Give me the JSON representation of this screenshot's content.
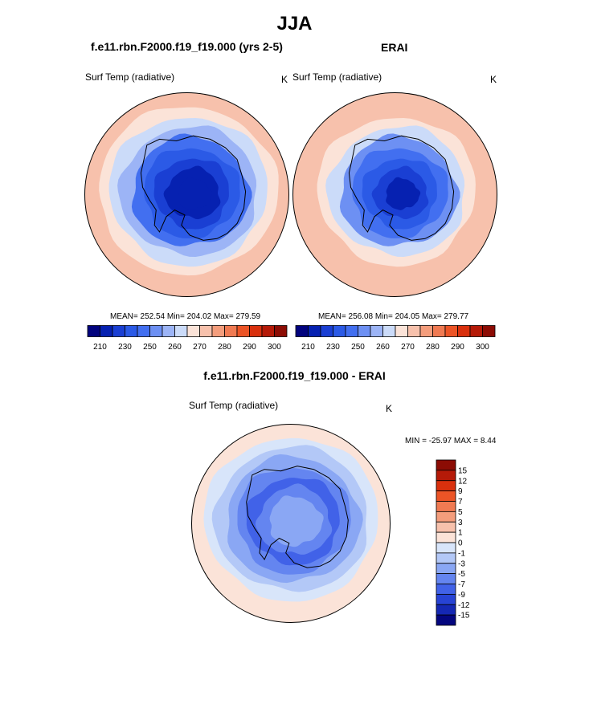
{
  "page_title": "JJA",
  "chart_data": [
    {
      "type": "heatmap",
      "title": "f.e11.rbn.F2000.f19_f19.000 (yrs 2-5)",
      "field_label": "Surf Temp (radiative)",
      "units": "K",
      "stats_text": "MEAN= 252.54  Min= 204.02  Max= 279.59",
      "mean": 252.54,
      "min": 204.02,
      "max": 279.59,
      "ring_values": [
        272,
        268,
        262,
        256,
        248,
        238,
        228,
        218,
        210
      ],
      "colorbar": {
        "tick_labels": [
          "210",
          "230",
          "250",
          "260",
          "270",
          "280",
          "290",
          "300"
        ],
        "colors": [
          "#02037e",
          "#0621b1",
          "#1a3fd3",
          "#2b5ae6",
          "#426ff0",
          "#6d90f3",
          "#9cb4f6",
          "#cbdbf9",
          "#fbe3d8",
          "#f7c1ac",
          "#f49d7c",
          "#f07a52",
          "#ec5426",
          "#d9300d",
          "#b51a08",
          "#8c0c04"
        ]
      }
    },
    {
      "type": "heatmap",
      "title": "ERAI",
      "field_label": "Surf Temp (radiative)",
      "units": "K",
      "stats_text": "MEAN= 256.08  Min= 204.05  Max= 279.77",
      "mean": 256.08,
      "min": 204.05,
      "max": 279.77,
      "ring_values": [
        273,
        270,
        266,
        260,
        252,
        242,
        232,
        222,
        212
      ],
      "colorbar": {
        "tick_labels": [
          "210",
          "230",
          "250",
          "260",
          "270",
          "280",
          "290",
          "300"
        ],
        "colors": [
          "#02037e",
          "#0621b1",
          "#1a3fd3",
          "#2b5ae6",
          "#426ff0",
          "#6d90f3",
          "#9cb4f6",
          "#cbdbf9",
          "#fbe3d8",
          "#f7c1ac",
          "#f49d7c",
          "#f07a52",
          "#ec5426",
          "#d9300d",
          "#b51a08",
          "#8c0c04"
        ]
      }
    },
    {
      "type": "heatmap",
      "title": "f.e11.rbn.F2000.f19_f19.000 - ERAI",
      "field_label": "Surf Temp (radiative)",
      "units": "K",
      "stats_text": "MIN = -25.97 MAX =   8.44",
      "min": -25.97,
      "max": 8.44,
      "ring_values": [
        0.5,
        -0.5,
        -2,
        -4,
        -6,
        -8,
        -7,
        -5
      ],
      "colorbar": {
        "tick_labels": [
          "15",
          "12",
          "9",
          "7",
          "5",
          "3",
          "1",
          "0",
          "-1",
          "-3",
          "-5",
          "-7",
          "-9",
          "-12",
          "-15"
        ],
        "colors": [
          "#8c0c04",
          "#b51a08",
          "#d9300d",
          "#ec5426",
          "#f07a52",
          "#f49d7c",
          "#f7c1ac",
          "#fbe3d8",
          "#d8e5fa",
          "#b3c8f7",
          "#8aa7f4",
          "#6485f0",
          "#4162e8",
          "#2743d5",
          "#1528b4",
          "#04067f"
        ]
      }
    }
  ]
}
